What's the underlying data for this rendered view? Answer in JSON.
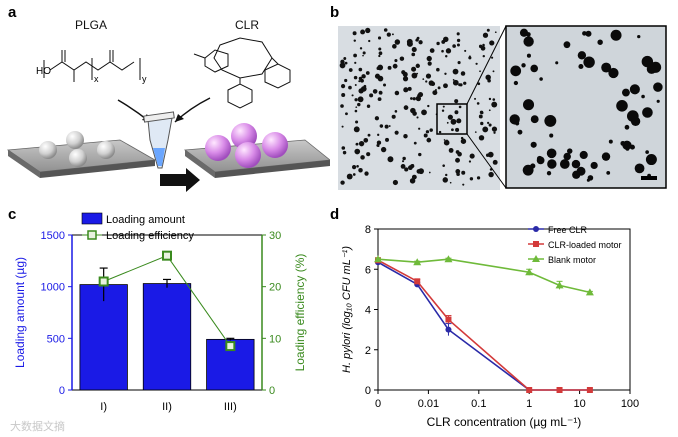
{
  "panels": {
    "a": {
      "letter": "a",
      "polymer_label": "PLGA",
      "drug_label": "CLR",
      "formula_ho": "HO",
      "formula_x": "x",
      "formula_y": "y"
    },
    "b": {
      "letter": "b"
    },
    "c": {
      "letter": "c",
      "chart_data": {
        "type": "bar",
        "categories": [
          "I)",
          "II)",
          "III)"
        ],
        "series": [
          {
            "name": "Loading amount",
            "values": [
              1020,
              1030,
              490
            ],
            "errors": [
              160,
              40,
              10
            ],
            "color": "#1a1ae6",
            "axis": "left"
          },
          {
            "name": "Loading efficiency",
            "values": [
              21,
              26,
              8.5
            ],
            "errors": [
              1,
              0.3,
              0.5
            ],
            "color": "#3a8a1e",
            "axis": "right"
          }
        ],
        "ylabel_left": "Loading amount (µg)",
        "ylabel_right": "Loading efficiency (%)",
        "ylim_left": [
          0,
          1500
        ],
        "ylim_right": [
          0,
          30
        ],
        "yticks_left": [
          "0",
          "500",
          "1000",
          "1500"
        ],
        "yticks_right": [
          "0",
          "10",
          "20",
          "30"
        ],
        "legend_placement": "top"
      }
    },
    "d": {
      "letter": "d",
      "chart_data": {
        "type": "line",
        "x_scale": "symlog",
        "xticks": [
          "0",
          "0.01",
          "0.1",
          "1",
          "10",
          "100"
        ],
        "xlabel": "CLR concentration (µg mL⁻¹)",
        "ylabel": "H. pylori (log₁₀ CFU mL⁻¹)",
        "ylim": [
          0,
          8
        ],
        "yticks": [
          "0",
          "2",
          "4",
          "6",
          "8"
        ],
        "series": [
          {
            "name": "Free CLR",
            "color": "#2a2aa8",
            "marker": "circle",
            "x": [
              0,
              0.006,
              0.025,
              1,
              4,
              16
            ],
            "y": [
              6.35,
              5.25,
              3.0,
              0,
              0,
              0
            ],
            "err": [
              0.1,
              0.1,
              0.3,
              0,
              0,
              0
            ]
          },
          {
            "name": "CLR-loaded motor",
            "color": "#d33a3a",
            "marker": "square",
            "x": [
              0,
              0.006,
              0.025,
              1,
              4,
              16
            ],
            "y": [
              6.45,
              5.4,
              3.5,
              0,
              0,
              0
            ],
            "err": [
              0.1,
              0.1,
              0.2,
              0,
              0,
              0
            ]
          },
          {
            "name": "Blank motor",
            "color": "#6fba3a",
            "marker": "triangle",
            "x": [
              0,
              0.006,
              0.025,
              1,
              4,
              16
            ],
            "y": [
              6.5,
              6.35,
              6.5,
              5.85,
              5.2,
              4.85
            ],
            "err": [
              0.05,
              0.05,
              0.05,
              0.15,
              0.2,
              0.05
            ]
          }
        ],
        "legend_placement": "top-right"
      }
    }
  },
  "watermark": "大数据文摘"
}
